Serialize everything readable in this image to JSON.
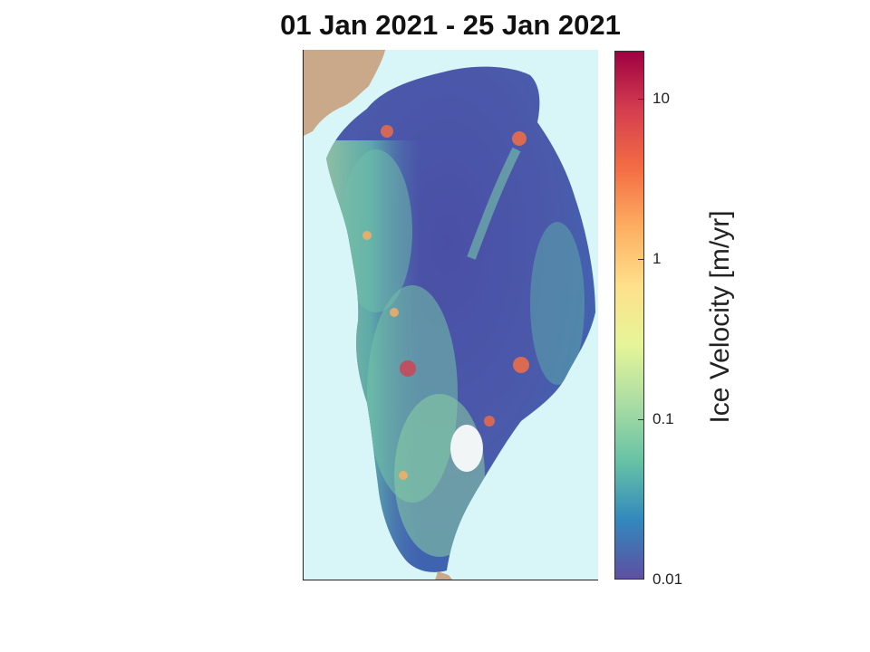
{
  "title": "01 Jan 2021 - 25 Jan 2021",
  "colorbar": {
    "label": "Ice Velocity [m/yr]",
    "scale": "log",
    "range": [
      0.01,
      20
    ],
    "ticks": [
      {
        "value": 0.01,
        "label": "0.01"
      },
      {
        "value": 0.1,
        "label": "0.1"
      },
      {
        "value": 1,
        "label": "1"
      },
      {
        "value": 10,
        "label": "10"
      }
    ],
    "colormap": [
      "#5e4fa2",
      "#3288bd",
      "#66c2a5",
      "#abdda4",
      "#e6f598",
      "#fee08b",
      "#fdae61",
      "#f46d43",
      "#d53e4f",
      "#9e0142"
    ]
  },
  "map": {
    "region": "Greenland",
    "ocean_color": "#d8f5f7",
    "land_color": "#c9a98a"
  }
}
